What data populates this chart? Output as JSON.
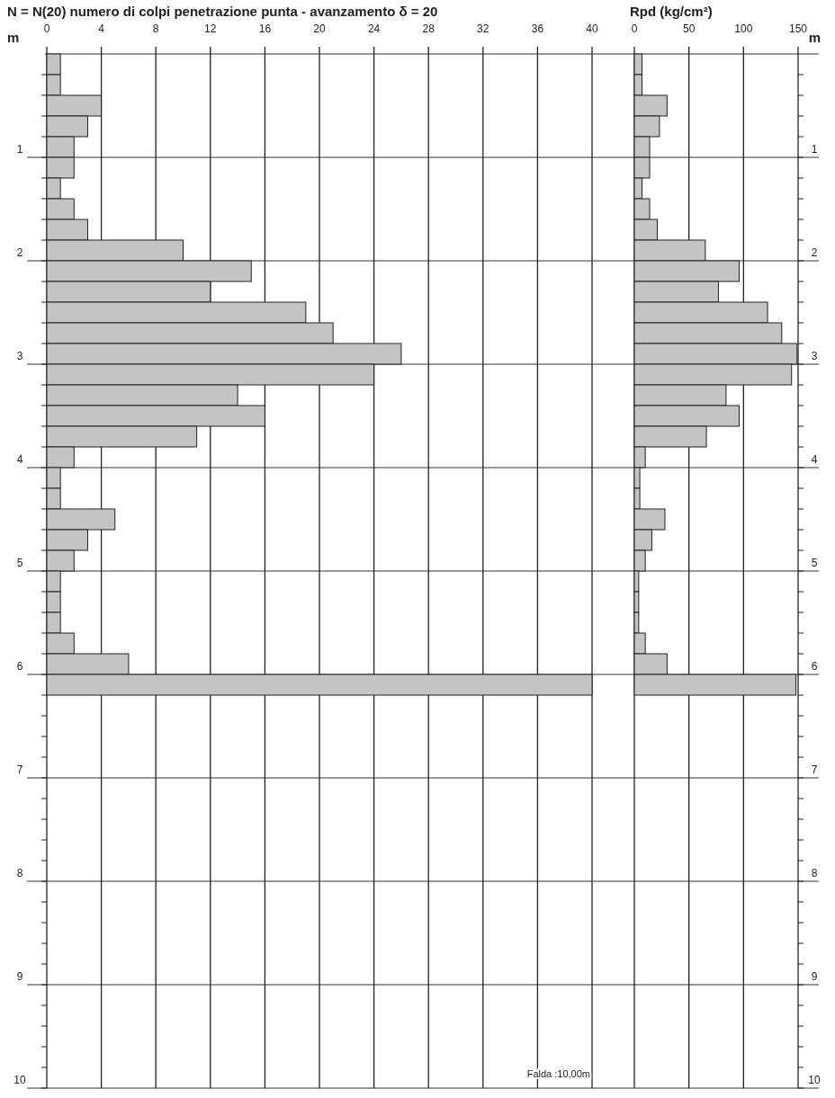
{
  "chart_data": [
    {
      "type": "bar",
      "orientation": "horizontal",
      "title": "N = N(20)  numero di colpi penetrazione punta  -  avanzamento  δ = 20",
      "ylabel": "m",
      "color": "#c4c4c4",
      "grid": true,
      "x": [
        0.1,
        0.3,
        0.5,
        0.7,
        0.9,
        1.1,
        1.3,
        1.5,
        1.7,
        1.9,
        2.1,
        2.3,
        2.5,
        2.7,
        2.9,
        3.1,
        3.3,
        3.5,
        3.7,
        3.9,
        4.1,
        4.3,
        4.5,
        4.7,
        4.9,
        5.1,
        5.3,
        5.5,
        5.7,
        5.9,
        6.1
      ],
      "values": [
        1,
        1,
        4,
        3,
        2,
        2,
        1,
        2,
        3,
        10,
        15,
        12,
        19,
        21,
        26,
        24,
        14,
        16,
        11,
        2,
        1,
        1,
        5,
        3,
        2,
        1,
        1,
        1,
        2,
        6,
        40
      ],
      "xlim": [
        0,
        40
      ],
      "xticks": [
        0,
        4,
        8,
        12,
        16,
        20,
        24,
        28,
        32,
        36,
        40
      ],
      "ylim": [
        10,
        0
      ],
      "yticks": [
        {
          "value": 0.2,
          "label": null
        },
        {
          "value": 0.4,
          "label": null
        },
        {
          "value": 0.6,
          "label": null
        },
        {
          "value": 0.8,
          "label": null
        },
        1,
        {
          "value": 1.2,
          "label": null
        },
        {
          "value": 1.4,
          "label": null
        },
        {
          "value": 1.6,
          "label": null
        },
        {
          "value": 1.8,
          "label": null
        },
        2,
        {
          "value": 2.2,
          "label": null
        },
        {
          "value": 2.4,
          "label": null
        },
        {
          "value": 2.6,
          "label": null
        },
        {
          "value": 2.8,
          "label": null
        },
        3,
        {
          "value": 3.2,
          "label": null
        },
        {
          "value": 3.4,
          "label": null
        },
        {
          "value": 3.6,
          "label": null
        },
        {
          "value": 3.8,
          "label": null
        },
        4,
        {
          "value": 4.2,
          "label": null
        },
        {
          "value": 4.4,
          "label": null
        },
        {
          "value": 4.6,
          "label": null
        },
        {
          "value": 4.8,
          "label": null
        },
        5,
        {
          "value": 5.2,
          "label": null
        },
        {
          "value": 5.4,
          "label": null
        },
        {
          "value": 5.6,
          "label": null
        },
        {
          "value": 5.8,
          "label": null
        },
        6,
        {
          "value": 6.2,
          "label": null
        },
        {
          "value": 6.4,
          "label": null
        },
        {
          "value": 6.6,
          "label": null
        },
        {
          "value": 6.8,
          "label": null
        },
        7,
        {
          "value": 7.2,
          "label": null
        },
        {
          "value": 7.4,
          "label": null
        },
        {
          "value": 7.6,
          "label": null
        },
        {
          "value": 7.8,
          "label": null
        },
        8,
        {
          "value": 8.2,
          "label": null
        },
        {
          "value": 8.4,
          "label": null
        },
        {
          "value": 8.6,
          "label": null
        },
        {
          "value": 8.8,
          "label": null
        },
        9,
        {
          "value": 9.2,
          "label": null
        },
        {
          "value": 9.4,
          "label": null
        },
        {
          "value": 9.6,
          "label": null
        },
        {
          "value": 9.8,
          "label": null
        },
        10
      ],
      "annotations": [
        "Falda :10,00m"
      ]
    },
    {
      "type": "bar",
      "orientation": "horizontal",
      "title": "Rpd (kg/cm²)",
      "ylabel": "m",
      "color": "#c4c4c4",
      "grid": true,
      "x": [
        0.1,
        0.3,
        0.5,
        0.7,
        0.9,
        1.1,
        1.3,
        1.5,
        1.7,
        1.9,
        2.1,
        2.3,
        2.5,
        2.7,
        2.9,
        3.1,
        3.3,
        3.5,
        3.7,
        3.9,
        4.1,
        4.3,
        4.5,
        4.7,
        4.9,
        5.1,
        5.3,
        5.5,
        5.7,
        5.9,
        6.1
      ],
      "values": [
        7,
        7,
        30,
        23,
        14,
        14,
        7,
        14,
        21,
        65,
        96,
        77,
        122,
        135,
        149,
        144,
        84,
        96,
        66,
        10,
        5,
        5,
        28,
        16,
        10,
        4,
        4,
        4,
        10,
        30,
        148
      ],
      "xlim": [
        0,
        150
      ],
      "xticks": [
        0,
        50,
        100,
        150
      ],
      "ylim": [
        10,
        0
      ],
      "yticks": [
        {
          "value": 0.2,
          "label": null
        },
        {
          "value": 0.4,
          "label": null
        },
        {
          "value": 0.6,
          "label": null
        },
        {
          "value": 0.8,
          "label": null
        },
        1,
        {
          "value": 1.2,
          "label": null
        },
        {
          "value": 1.4,
          "label": null
        },
        {
          "value": 1.6,
          "label": null
        },
        {
          "value": 1.8,
          "label": null
        },
        2,
        {
          "value": 2.2,
          "label": null
        },
        {
          "value": 2.4,
          "label": null
        },
        {
          "value": 2.6,
          "label": null
        },
        {
          "value": 2.8,
          "label": null
        },
        3,
        {
          "value": 3.2,
          "label": null
        },
        {
          "value": 3.4,
          "label": null
        },
        {
          "value": 3.6,
          "label": null
        },
        {
          "value": 3.8,
          "label": null
        },
        4,
        {
          "value": 4.2,
          "label": null
        },
        {
          "value": 4.4,
          "label": null
        },
        {
          "value": 4.6,
          "label": null
        },
        {
          "value": 4.8,
          "label": null
        },
        5,
        {
          "value": 5.2,
          "label": null
        },
        {
          "value": 5.4,
          "label": null
        },
        {
          "value": 5.6,
          "label": null
        },
        {
          "value": 5.8,
          "label": null
        },
        6,
        {
          "value": 6.2,
          "label": null
        },
        {
          "value": 6.4,
          "label": null
        },
        {
          "value": 6.6,
          "label": null
        },
        {
          "value": 6.8,
          "label": null
        },
        7,
        {
          "value": 7.2,
          "label": null
        },
        {
          "value": 7.4,
          "label": null
        },
        {
          "value": 7.6,
          "label": null
        },
        {
          "value": 7.8,
          "label": null
        },
        8,
        {
          "value": 8.2,
          "label": null
        },
        {
          "value": 8.4,
          "label": null
        },
        {
          "value": 8.6,
          "label": null
        },
        {
          "value": 8.8,
          "label": null
        },
        9,
        {
          "value": 9.2,
          "label": null
        },
        {
          "value": 9.4,
          "label": null
        },
        {
          "value": 9.6,
          "label": null
        },
        {
          "value": 9.8,
          "label": null
        },
        10
      ]
    }
  ]
}
